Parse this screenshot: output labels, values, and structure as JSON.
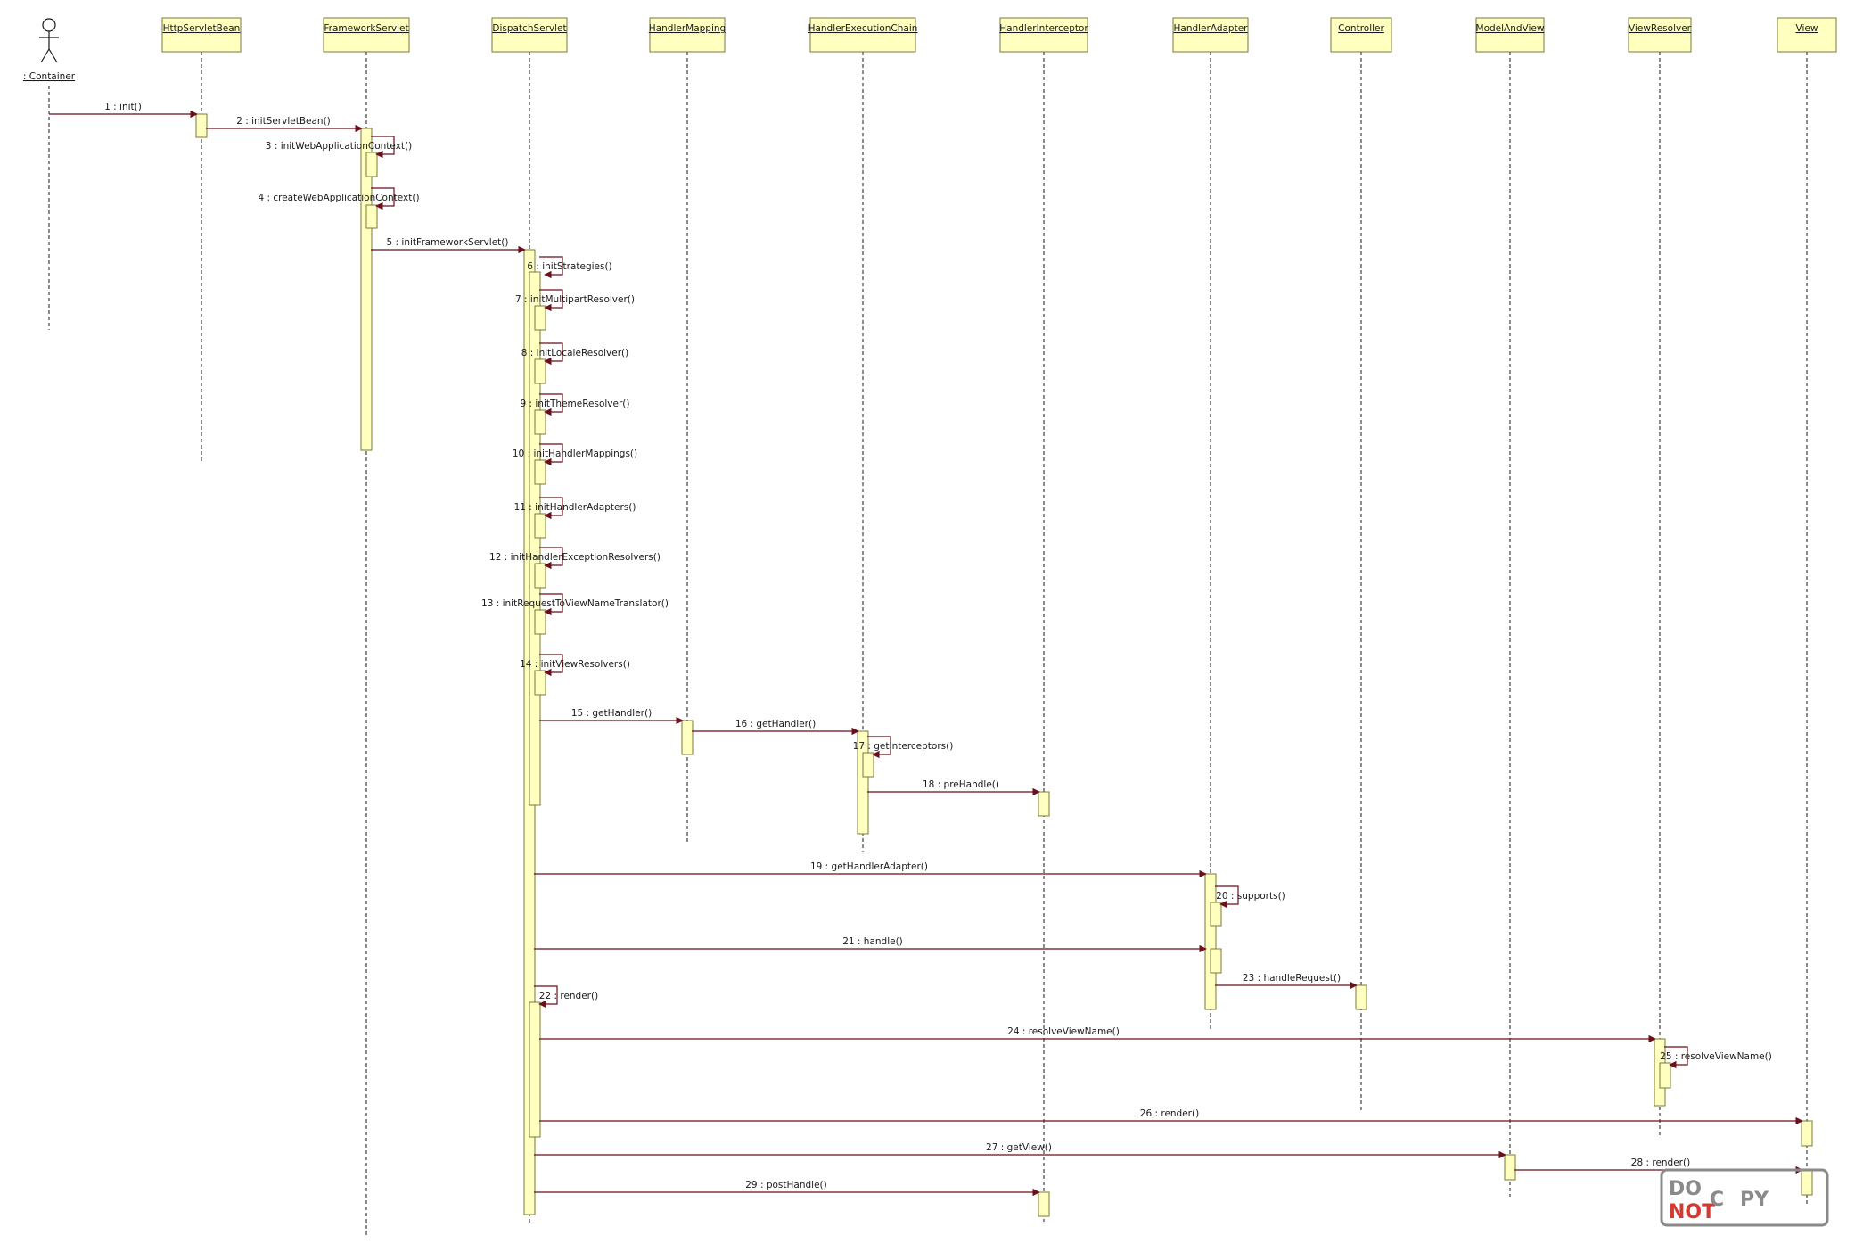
{
  "participants": [
    {
      "key": "container",
      "name": ": Container",
      "type": "actor"
    },
    {
      "key": "httpservletbean",
      "name": "HttpServletBean",
      "type": "object"
    },
    {
      "key": "frameworkservlet",
      "name": "FrameworkServlet",
      "type": "object"
    },
    {
      "key": "dispatchservlet",
      "name": "DispatchServlet",
      "type": "object"
    },
    {
      "key": "handlermapping",
      "name": "HandlerMapping",
      "type": "object"
    },
    {
      "key": "handlerexecutionchain",
      "name": "HandlerExecutionChain",
      "type": "object"
    },
    {
      "key": "handlerinterceptor",
      "name": "HandlerInterceptor",
      "type": "object"
    },
    {
      "key": "handleradapter",
      "name": "HandlerAdapter",
      "type": "object"
    },
    {
      "key": "controller",
      "name": "Controller",
      "type": "object"
    },
    {
      "key": "modelandview",
      "name": "ModelAndView",
      "type": "object"
    },
    {
      "key": "viewresolver",
      "name": "ViewResolver",
      "type": "object"
    },
    {
      "key": "view",
      "name": "View",
      "type": "object"
    }
  ],
  "messages": [
    {
      "id": 1,
      "label": "1 : init()",
      "from": "container",
      "to": "httpservletbean"
    },
    {
      "id": 2,
      "label": "2 : initServletBean()",
      "from": "httpservletbean",
      "to": "frameworkservlet"
    },
    {
      "id": 3,
      "label": "3 : initWebApplicationContext()",
      "from": "frameworkservlet",
      "to": "frameworkservlet"
    },
    {
      "id": 4,
      "label": "4 : createWebApplicationContext()",
      "from": "frameworkservlet",
      "to": "frameworkservlet"
    },
    {
      "id": 5,
      "label": "5 : initFrameworkServlet()",
      "from": "frameworkservlet",
      "to": "dispatchservlet"
    },
    {
      "id": 6,
      "label": "6 : initStrategies()",
      "from": "dispatchservlet",
      "to": "dispatchservlet"
    },
    {
      "id": 7,
      "label": "7 : initMultipartResolver()",
      "from": "dispatchservlet",
      "to": "dispatchservlet"
    },
    {
      "id": 8,
      "label": "8 : initLocaleResolver()",
      "from": "dispatchservlet",
      "to": "dispatchservlet"
    },
    {
      "id": 9,
      "label": "9 : initThemeResolver()",
      "from": "dispatchservlet",
      "to": "dispatchservlet"
    },
    {
      "id": 10,
      "label": "10 : initHandlerMappings()",
      "from": "dispatchservlet",
      "to": "dispatchservlet"
    },
    {
      "id": 11,
      "label": "11 : initHandlerAdapters()",
      "from": "dispatchservlet",
      "to": "dispatchservlet"
    },
    {
      "id": 12,
      "label": "12 : initHandlerExceptionResolvers()",
      "from": "dispatchservlet",
      "to": "dispatchservlet"
    },
    {
      "id": 13,
      "label": "13 : initRequestToViewNameTranslator()",
      "from": "dispatchservlet",
      "to": "dispatchservlet"
    },
    {
      "id": 14,
      "label": "14 : initViewResolvers()",
      "from": "dispatchservlet",
      "to": "dispatchservlet"
    },
    {
      "id": 15,
      "label": "15 : getHandler()",
      "from": "dispatchservlet",
      "to": "handlermapping"
    },
    {
      "id": 16,
      "label": "16 : getHandler()",
      "from": "handlermapping",
      "to": "handlerexecutionchain"
    },
    {
      "id": 17,
      "label": "17 : getInterceptors()",
      "from": "handlerexecutionchain",
      "to": "handlerexecutionchain"
    },
    {
      "id": 18,
      "label": "18 : preHandle()",
      "from": "handlerexecutionchain",
      "to": "handlerinterceptor"
    },
    {
      "id": 19,
      "label": "19 : getHandlerAdapter()",
      "from": "dispatchservlet",
      "to": "handleradapter"
    },
    {
      "id": 20,
      "label": "20 : supports()",
      "from": "handleradapter",
      "to": "handleradapter"
    },
    {
      "id": 21,
      "label": "21 : handle()",
      "from": "dispatchservlet",
      "to": "handleradapter"
    },
    {
      "id": 22,
      "label": "22 : render()",
      "from": "dispatchservlet",
      "to": "dispatchservlet"
    },
    {
      "id": 23,
      "label": "23 : handleRequest()",
      "from": "handleradapter",
      "to": "controller"
    },
    {
      "id": 24,
      "label": "24 : resolveViewName()",
      "from": "dispatchservlet",
      "to": "viewresolver"
    },
    {
      "id": 25,
      "label": "25 : resolveViewName()",
      "from": "viewresolver",
      "to": "viewresolver"
    },
    {
      "id": 26,
      "label": "26 : render()",
      "from": "dispatchservlet",
      "to": "view"
    },
    {
      "id": 27,
      "label": "27 : getView()",
      "from": "dispatchservlet",
      "to": "modelandview"
    },
    {
      "id": 28,
      "label": "28 : render()",
      "from": "modelandview",
      "to": "view"
    },
    {
      "id": 29,
      "label": "29 : postHandle()",
      "from": "dispatchservlet",
      "to": "handlerinterceptor"
    }
  ],
  "stamp": {
    "line1": "DO",
    "line2a": "NOT",
    "line2b": "C",
    "line2c": "PY"
  },
  "colors": {
    "box_fill": "#ffffc0",
    "box_stroke": "#7a7a3a",
    "arrow": "#6b0f1a",
    "text": "#1a1a1a",
    "stamp_red": "#d43a2f",
    "stamp_gray": "#8a8a8a"
  }
}
